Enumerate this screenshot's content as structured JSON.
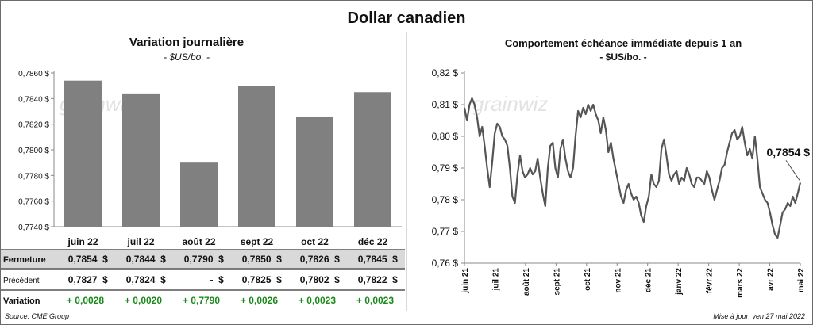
{
  "title": "Dollar canadien",
  "left_chart": {
    "title": "Variation  journalière",
    "subtitle": "- $US/bo. -"
  },
  "right_chart": {
    "title": "Comportement échéance immédiate depuis 1 an",
    "subtitle": "- $US/bo. -",
    "last_value_label": "0,7854 $"
  },
  "watermark": "grainwiz",
  "table": {
    "rows": [
      {
        "label": "Fermeture",
        "values": [
          "0,7854",
          "0,7844",
          "0,7790",
          "0,7850",
          "0,7826",
          "0,7845"
        ],
        "suffix": "$",
        "kind": "shaded"
      },
      {
        "label": "Précédent",
        "values": [
          "0,7827",
          "0,7824",
          "-",
          "0,7825",
          "0,7802",
          "0,7822"
        ],
        "suffix": "$",
        "kind": "plain"
      },
      {
        "label": "Variation",
        "values": [
          "+ 0,0028",
          "+ 0,0020",
          "+ 0,7790",
          "+ 0,0026",
          "+ 0,0023",
          "+ 0,0023"
        ],
        "suffix": "",
        "kind": "change"
      }
    ]
  },
  "colors": {
    "bar": "#808080",
    "line": "#555555",
    "positive": "#1a8a1a",
    "shade": "#d9d9d9"
  },
  "chart_data": [
    {
      "type": "bar",
      "categories": [
        "juin 22",
        "juil 22",
        "août 22",
        "sept 22",
        "oct 22",
        "déc 22"
      ],
      "values": [
        0.7854,
        0.7844,
        0.779,
        0.785,
        0.7826,
        0.7845
      ],
      "ylim": [
        0.774,
        0.786
      ],
      "yticks": [
        0.774,
        0.776,
        0.778,
        0.78,
        0.782,
        0.784,
        0.786
      ],
      "ytick_labels": [
        "0,7740 $",
        "0,7760 $",
        "0,7780 $",
        "0,7800 $",
        "0,7820 $",
        "0,7840 $",
        "0,7860 $"
      ],
      "title": "Variation  journalière",
      "xlabel": "",
      "ylabel": "",
      "grid": false
    },
    {
      "type": "line",
      "x_labels": [
        "juin 21",
        "juil 21",
        "août 21",
        "sept 21",
        "oct 21",
        "nov 21",
        "déc 21",
        "janv 22",
        "févr 22",
        "mars 22",
        "avr 22",
        "mai 22"
      ],
      "values": [
        0.809,
        0.805,
        0.81,
        0.812,
        0.81,
        0.806,
        0.8,
        0.803,
        0.797,
        0.79,
        0.784,
        0.792,
        0.801,
        0.804,
        0.803,
        0.8,
        0.799,
        0.797,
        0.79,
        0.781,
        0.779,
        0.788,
        0.794,
        0.789,
        0.787,
        0.788,
        0.79,
        0.788,
        0.789,
        0.793,
        0.787,
        0.782,
        0.778,
        0.79,
        0.797,
        0.798,
        0.79,
        0.787,
        0.796,
        0.799,
        0.793,
        0.789,
        0.787,
        0.79,
        0.8,
        0.808,
        0.806,
        0.809,
        0.807,
        0.81,
        0.808,
        0.81,
        0.807,
        0.805,
        0.801,
        0.806,
        0.802,
        0.795,
        0.798,
        0.793,
        0.789,
        0.785,
        0.781,
        0.779,
        0.783,
        0.785,
        0.782,
        0.78,
        0.781,
        0.779,
        0.775,
        0.773,
        0.778,
        0.781,
        0.788,
        0.785,
        0.784,
        0.786,
        0.796,
        0.799,
        0.794,
        0.788,
        0.786,
        0.788,
        0.789,
        0.785,
        0.787,
        0.786,
        0.79,
        0.788,
        0.785,
        0.784,
        0.787,
        0.787,
        0.786,
        0.785,
        0.789,
        0.787,
        0.783,
        0.78,
        0.783,
        0.786,
        0.79,
        0.791,
        0.795,
        0.798,
        0.801,
        0.802,
        0.799,
        0.8,
        0.803,
        0.798,
        0.794,
        0.796,
        0.793,
        0.8,
        0.793,
        0.784,
        0.782,
        0.78,
        0.779,
        0.776,
        0.772,
        0.769,
        0.768,
        0.772,
        0.776,
        0.777,
        0.779,
        0.778,
        0.781,
        0.779,
        0.782,
        0.7854
      ],
      "ylim": [
        0.76,
        0.82
      ],
      "yticks": [
        0.76,
        0.77,
        0.78,
        0.79,
        0.8,
        0.81,
        0.82
      ],
      "ytick_labels": [
        "0,76 $",
        "0,77 $",
        "0,78 $",
        "0,79 $",
        "0,80 $",
        "0,81 $",
        "0,82 $"
      ],
      "annotation": "0,7854 $",
      "title": "Comportement échéance immédiate depuis 1 an",
      "xlabel": "",
      "ylabel": "",
      "grid": false
    }
  ],
  "footer": {
    "source": "Source: CME Group",
    "updated": "Mise à jour: ven 27 mai 2022"
  }
}
